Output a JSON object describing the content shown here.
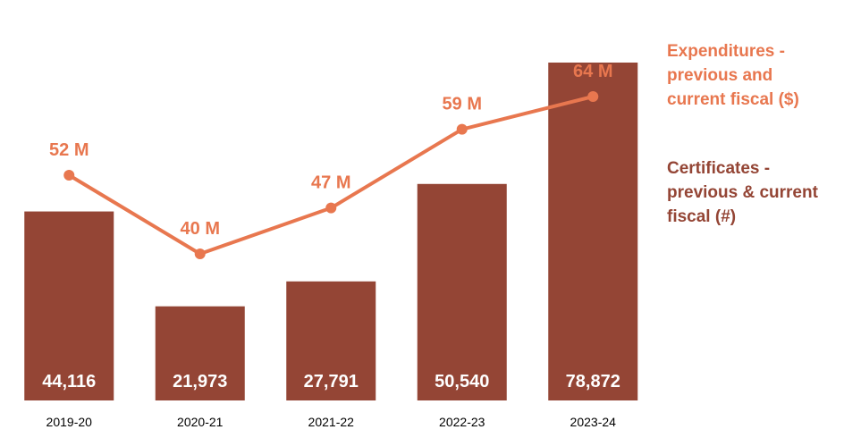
{
  "chart_data": {
    "type": "bar",
    "categories": [
      "2019-20",
      "2020-21",
      "2021-22",
      "2022-23",
      "2023-24"
    ],
    "series": [
      {
        "name": "Certificates - previous & current fiscal (#)",
        "type": "bar",
        "values": [
          44116,
          21973,
          27791,
          50540,
          78872
        ],
        "labels": [
          "44,116",
          "21,973",
          "27,791",
          "50,540",
          "78,872"
        ]
      },
      {
        "name": "Expenditures - previous and current fiscal ($)",
        "type": "line",
        "values": [
          52,
          40,
          47,
          59,
          64
        ],
        "labels": [
          "52 M",
          "40 M",
          "47 M",
          "59 M",
          "64 M"
        ]
      }
    ],
    "bar_ylim": [
      0,
      83000
    ],
    "line_ylim": [
      0,
      75
    ],
    "colors": {
      "bar": "#944535",
      "line": "#e8774f",
      "bar_label": "#ffffff",
      "tick": "#000000"
    },
    "legend": {
      "line_label": "Expenditures -\nprevious and\ncurrent fiscal ($)",
      "bar_label": "Certificates -\nprevious & current\nfiscal (#)"
    },
    "grid": false,
    "legend_position": "right"
  }
}
